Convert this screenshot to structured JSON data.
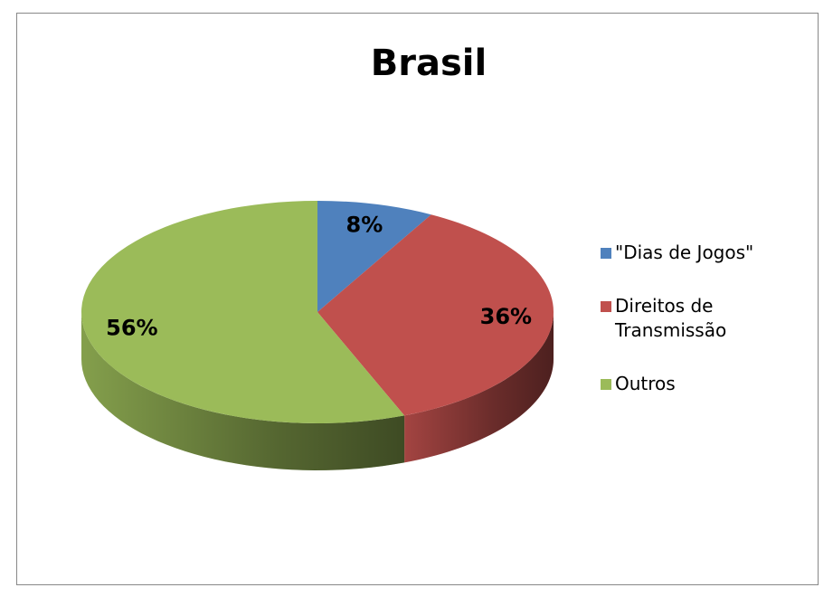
{
  "chart_data": {
    "type": "pie",
    "title": "Brasil",
    "categories": [
      "\"Dias de Jogos\"",
      "Direitos de Transmissão",
      "Outros"
    ],
    "values": [
      8,
      36,
      56
    ],
    "value_labels": [
      "8%",
      "36%",
      "56%"
    ],
    "colors": [
      "#4f81bd",
      "#c0504d",
      "#9bbb59"
    ],
    "legend": "right"
  }
}
